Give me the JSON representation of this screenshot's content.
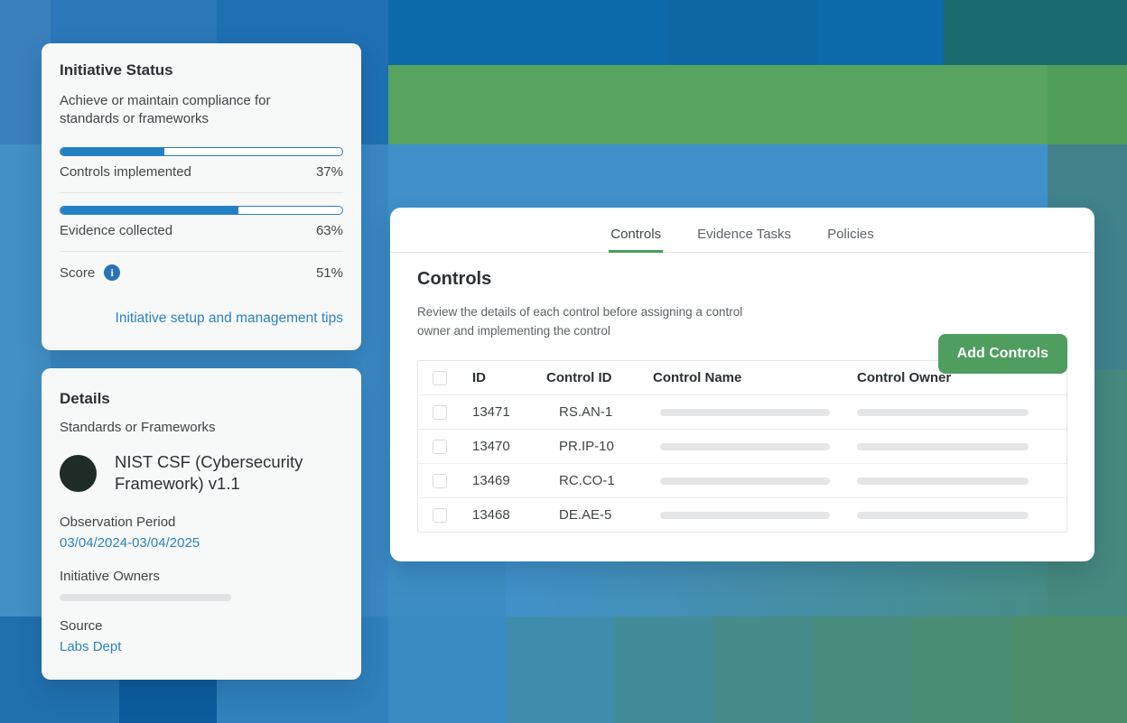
{
  "colors": {
    "accent_green": "#4f9d5f",
    "tab_underline_green": "#4a9e5c",
    "progress_blue": "#2380c2",
    "link_blue": "#2d83c0",
    "info_icon_blue": "#2a72b8",
    "framework_dot": "#1e2b26"
  },
  "initiative_status": {
    "title": "Initiative Status",
    "description": "Achieve or maintain compliance for standards or frameworks",
    "metrics": [
      {
        "label": "Controls implemented",
        "value": "37%",
        "percent": 37
      },
      {
        "label": "Evidence collected",
        "value": "63%",
        "percent": 63
      }
    ],
    "score_label": "Score",
    "score_value": "51%",
    "info_icon_glyph": "i",
    "link": "Initiative setup and management tips"
  },
  "details": {
    "title": "Details",
    "frameworks_label": "Standards or Frameworks",
    "framework_name": "NIST CSF (Cybersecurity Framework) v1.1",
    "observation_period_label": "Observation Period",
    "observation_period_value": "03/04/2024-03/04/2025",
    "owners_label": "Initiative Owners",
    "source_label": "Source",
    "source_value": "Labs Dept"
  },
  "controls_panel": {
    "tabs": [
      {
        "label": "Controls",
        "active": true
      },
      {
        "label": "Evidence Tasks",
        "active": false
      },
      {
        "label": "Policies",
        "active": false
      }
    ],
    "heading": "Controls",
    "description": "Review the details of each control before assigning a control owner and implementing the control",
    "add_button": "Add Controls",
    "table": {
      "headers": [
        "ID",
        "Control ID",
        "Control Name",
        "Control Owner"
      ],
      "rows": [
        {
          "id": "13471",
          "control_id": "RS.AN-1"
        },
        {
          "id": "13470",
          "control_id": "PR.IP-10"
        },
        {
          "id": "13469",
          "control_id": "RC.CO-1"
        },
        {
          "id": "13468",
          "control_id": "DE.AE-5"
        }
      ]
    }
  }
}
